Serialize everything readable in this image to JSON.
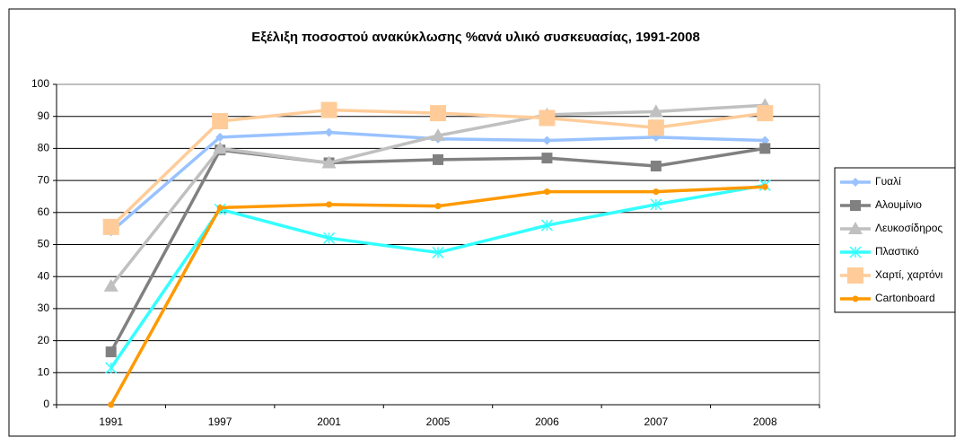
{
  "chart_data": {
    "type": "line",
    "title": "Εξέλιξη ποσοστού ανακύκλωσης %ανά υλικό συσκευασίας, 1991-2008",
    "categories": [
      "1991",
      "1997",
      "2001",
      "2005",
      "2006",
      "2007",
      "2008"
    ],
    "series": [
      {
        "name": "Γυαλί",
        "color": "#99c2ff",
        "marker": "diamond",
        "values": [
          54,
          83.5,
          85,
          83,
          82.5,
          83.5,
          82.5
        ]
      },
      {
        "name": "Αλουμίνιο",
        "color": "#808080",
        "marker": "square",
        "values": [
          16.5,
          79.5,
          75.5,
          76.5,
          77,
          74.5,
          80
        ]
      },
      {
        "name": "Λευκοσίδηρος",
        "color": "#c0c0c0",
        "marker": "triangle",
        "values": [
          37,
          80,
          75.5,
          84,
          90.5,
          91.5,
          93.5
        ]
      },
      {
        "name": "Πλαστικό",
        "color": "#33ffff",
        "marker": "x",
        "values": [
          11.5,
          61,
          52,
          47.5,
          56,
          62.5,
          68.5
        ]
      },
      {
        "name": "Χαρτί, χαρτόνι",
        "color": "#ffcc99",
        "marker": "bigsquare",
        "values": [
          55.5,
          88.5,
          92,
          91,
          89.5,
          86.5,
          91
        ]
      },
      {
        "name": "Cartonboard",
        "color": "#ff9900",
        "marker": "circle",
        "values": [
          0,
          61.5,
          62.5,
          62,
          66.5,
          66.5,
          68
        ]
      }
    ],
    "ylim": [
      0,
      100
    ],
    "yticks": [
      0,
      10,
      20,
      30,
      40,
      50,
      60,
      70,
      80,
      90,
      100
    ],
    "grid": true,
    "legend": "right"
  }
}
